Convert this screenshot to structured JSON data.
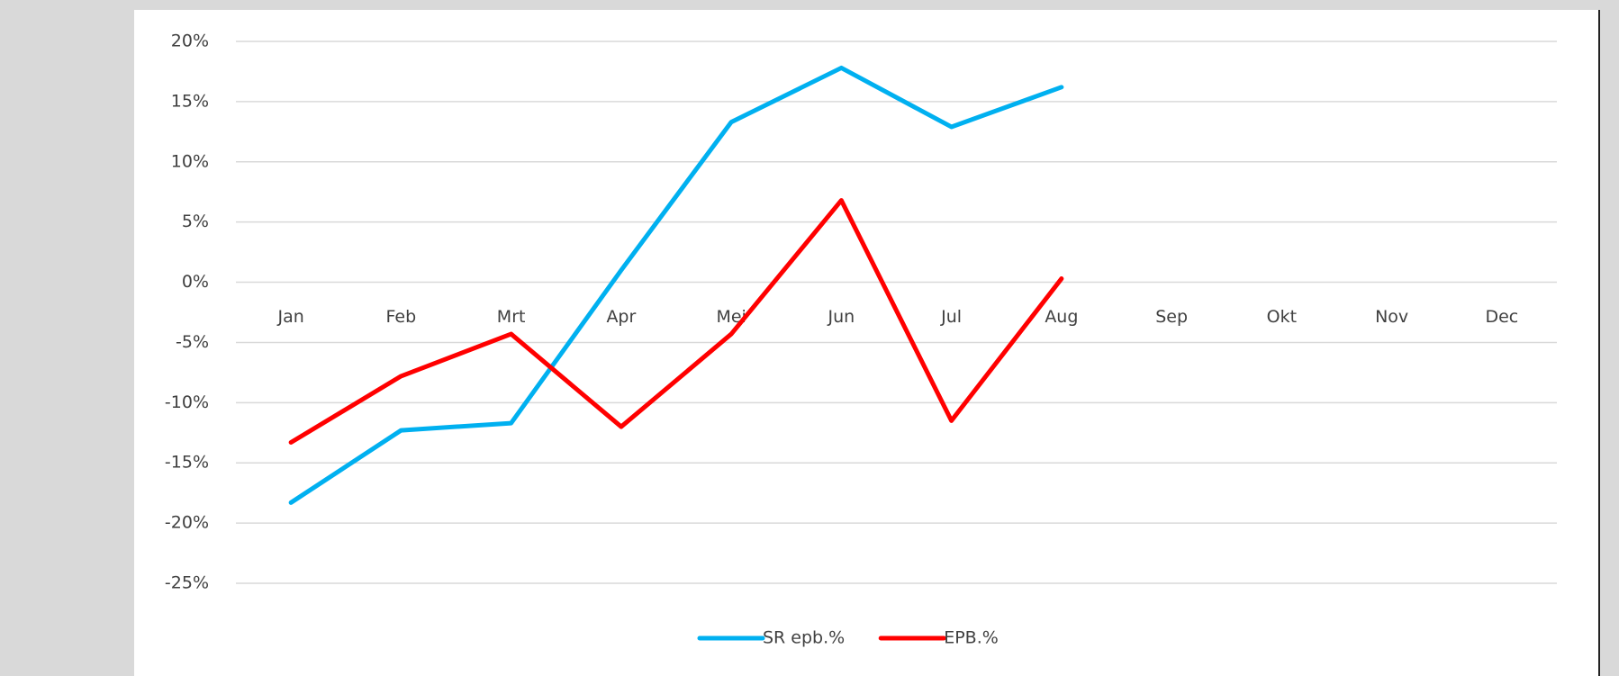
{
  "chart_data": {
    "type": "line",
    "categories": [
      "Jan",
      "Feb",
      "Mrt",
      "Apr",
      "Mei",
      "Jun",
      "Jul",
      "Aug",
      "Sep",
      "Okt",
      "Nov",
      "Dec"
    ],
    "series": [
      {
        "name": "SR epb.%",
        "color": "#00b0f0",
        "values": [
          -18.3,
          -12.3,
          -11.7,
          1,
          13.3,
          17.8,
          12.9,
          16.2,
          null,
          null,
          null,
          null
        ]
      },
      {
        "name": "EPB.%",
        "color": "#ff0000",
        "values": [
          -13.3,
          -7.8,
          -4.3,
          -12,
          -4.3,
          6.8,
          -11.5,
          0.3,
          null,
          null,
          null,
          null
        ]
      }
    ],
    "ylim": [
      -25,
      20
    ],
    "yticks": [
      {
        "value": -25,
        "label": "-25%"
      },
      {
        "value": -20,
        "label": "-20%"
      },
      {
        "value": -15,
        "label": "-15%"
      },
      {
        "value": -10,
        "label": "-10%"
      },
      {
        "value": -5,
        "label": "-5%"
      },
      {
        "value": 0,
        "label": "0%"
      },
      {
        "value": 5,
        "label": "5%"
      },
      {
        "value": 10,
        "label": "10%"
      },
      {
        "value": 15,
        "label": "15%"
      },
      {
        "value": 20,
        "label": "20%"
      }
    ],
    "grid": true,
    "legend": "bottom"
  }
}
